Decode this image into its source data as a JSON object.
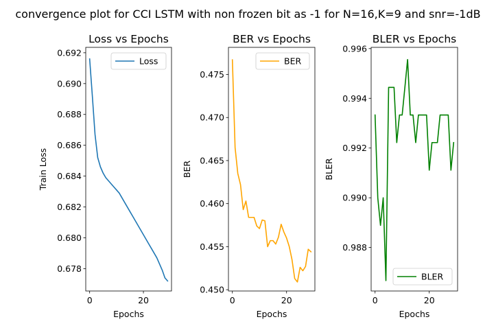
{
  "suptitle": "convergence plot for CCI LSTM with non frozen bit as -1 for N=16,K=9 and snr=-1dB",
  "chart_data": [
    {
      "type": "line",
      "title": "Loss vs Epochs",
      "xlabel": "Epochs",
      "ylabel": "Train Loss",
      "xlim": [
        -1.45,
        30.45
      ],
      "ylim": [
        0.67655,
        0.69235
      ],
      "xticks": [
        0,
        20
      ],
      "xtick_labels": [
        "0",
        "20"
      ],
      "yticks": [
        0.678,
        0.68,
        0.682,
        0.684,
        0.686,
        0.688,
        0.69,
        0.692
      ],
      "ytick_labels": [
        "0.678",
        "0.680",
        "0.682",
        "0.684",
        "0.686",
        "0.688",
        "0.690",
        "0.692"
      ],
      "legend_position": "upper right",
      "series": [
        {
          "name": "Loss",
          "color": "#1f77b4",
          "x": [
            0,
            1,
            2,
            3,
            4,
            5,
            6,
            7,
            8,
            9,
            10,
            11,
            12,
            13,
            14,
            15,
            16,
            17,
            18,
            19,
            20,
            21,
            22,
            23,
            24,
            25,
            26,
            27,
            28,
            29
          ],
          "values": [
            0.6916,
            0.6892,
            0.6867,
            0.6852,
            0.6846,
            0.6842,
            0.6839,
            0.6837,
            0.6835,
            0.6833,
            0.6831,
            0.6829,
            0.6826,
            0.6823,
            0.682,
            0.6817,
            0.6814,
            0.6811,
            0.6808,
            0.6805,
            0.6802,
            0.6799,
            0.6796,
            0.6793,
            0.679,
            0.6787,
            0.6783,
            0.6779,
            0.6774,
            0.6772
          ]
        }
      ]
    },
    {
      "type": "line",
      "title": "BER vs Epochs",
      "xlabel": "Epochs",
      "ylabel": "BER",
      "xlim": [
        -1.45,
        30.45
      ],
      "ylim": [
        0.44985,
        0.47815
      ],
      "xticks": [
        0,
        20
      ],
      "xtick_labels": [
        "0",
        "20"
      ],
      "yticks": [
        0.45,
        0.455,
        0.46,
        0.465,
        0.47,
        0.475
      ],
      "ytick_labels": [
        "0.450",
        "0.455",
        "0.460",
        "0.465",
        "0.470",
        "0.475"
      ],
      "legend_position": "upper right",
      "series": [
        {
          "name": "BER",
          "color": "#ffa500",
          "x": [
            0,
            1,
            2,
            3,
            4,
            5,
            6,
            7,
            8,
            9,
            10,
            11,
            12,
            13,
            14,
            15,
            16,
            17,
            18,
            19,
            20,
            21,
            22,
            23,
            24,
            25,
            26,
            27,
            28,
            29
          ],
          "values": [
            0.4767,
            0.4665,
            0.4635,
            0.4622,
            0.4593,
            0.4603,
            0.4584,
            0.4584,
            0.4584,
            0.4574,
            0.4571,
            0.4581,
            0.458,
            0.455,
            0.4557,
            0.4557,
            0.4553,
            0.4561,
            0.4576,
            0.4567,
            0.456,
            0.455,
            0.4535,
            0.4513,
            0.4509,
            0.4526,
            0.4522,
            0.4527,
            0.4547,
            0.4544
          ]
        }
      ]
    },
    {
      "type": "line",
      "title": "BLER vs Epochs",
      "xlabel": "Epochs",
      "ylabel": "BLER",
      "xlim": [
        -1.45,
        30.45
      ],
      "ylim": [
        0.98625,
        0.99605
      ],
      "xticks": [
        0,
        20
      ],
      "xtick_labels": [
        "0",
        "20"
      ],
      "yticks": [
        0.988,
        0.99,
        0.992,
        0.994,
        0.996
      ],
      "ytick_labels": [
        "0.988",
        "0.990",
        "0.992",
        "0.994",
        "0.996"
      ],
      "legend_position": "lower right",
      "series": [
        {
          "name": "BLER",
          "color": "#008000",
          "x": [
            0,
            1,
            2,
            3,
            4,
            5,
            6,
            7,
            8,
            9,
            10,
            11,
            12,
            13,
            14,
            15,
            16,
            17,
            18,
            19,
            20,
            21,
            22,
            23,
            24,
            25,
            26,
            27,
            28,
            29
          ],
          "values": [
            0.99333,
            0.99,
            0.98889,
            0.99,
            0.98667,
            0.99444,
            0.99444,
            0.99444,
            0.99222,
            0.99333,
            0.99333,
            0.99444,
            0.99556,
            0.99333,
            0.99333,
            0.99222,
            0.99333,
            0.99333,
            0.99333,
            0.99333,
            0.99111,
            0.99222,
            0.99222,
            0.99222,
            0.99333,
            0.99333,
            0.99333,
            0.99333,
            0.99111,
            0.99222
          ]
        }
      ]
    }
  ]
}
